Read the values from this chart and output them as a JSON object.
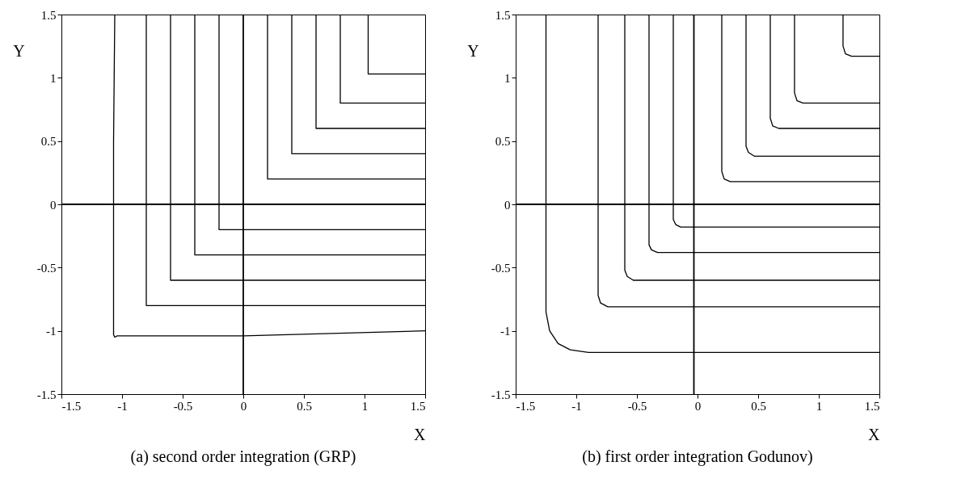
{
  "chart_data": [
    {
      "type": "line",
      "title": "(a) second order integration (GRP)",
      "xlabel": "X",
      "ylabel": "Y",
      "xlim": [
        -1.5,
        1.5
      ],
      "ylim": [
        -1.5,
        1.5
      ],
      "xticks": [
        -1.5,
        -1,
        -0.5,
        0,
        0.5,
        1,
        1.5
      ],
      "yticks": [
        -1.5,
        -1,
        -0.5,
        0,
        0.5,
        1,
        1.5
      ],
      "ref_lines": [
        {
          "axis": "x",
          "value": 0
        },
        {
          "axis": "y",
          "value": 0
        }
      ],
      "series": [
        {
          "color": "#000000",
          "x": [
            -1.06,
            -1.07,
            -1.07,
            -1.06,
            -1.04,
            0,
            1.5
          ],
          "values": [
            1.5,
            0.5,
            -1.03,
            -1.05,
            -1.04,
            -1.04,
            -1.0
          ]
        },
        {
          "color": "#000000",
          "x": [
            -0.8,
            -0.8,
            1.5
          ],
          "values": [
            1.5,
            -0.8,
            -0.8
          ]
        },
        {
          "color": "#000000",
          "x": [
            -0.6,
            -0.6,
            1.5
          ],
          "values": [
            1.5,
            -0.6,
            -0.6
          ]
        },
        {
          "color": "#000000",
          "x": [
            -0.4,
            -0.4,
            1.5
          ],
          "values": [
            1.5,
            -0.4,
            -0.4
          ]
        },
        {
          "color": "#000000",
          "x": [
            -0.2,
            -0.2,
            1.5
          ],
          "values": [
            1.5,
            -0.2,
            -0.2
          ]
        },
        {
          "color": "#000000",
          "x": [
            0.2,
            0.2,
            1.5
          ],
          "values": [
            1.5,
            0.2,
            0.2
          ]
        },
        {
          "color": "#000000",
          "x": [
            0.4,
            0.4,
            1.5
          ],
          "values": [
            1.5,
            0.4,
            0.4
          ]
        },
        {
          "color": "#000000",
          "x": [
            0.6,
            0.6,
            1.5
          ],
          "values": [
            1.5,
            0.6,
            0.6
          ]
        },
        {
          "color": "#000000",
          "x": [
            0.8,
            0.8,
            1.5
          ],
          "values": [
            1.5,
            0.8,
            0.8
          ]
        },
        {
          "color": "#000000",
          "x": [
            1.03,
            1.03,
            1.5
          ],
          "values": [
            1.5,
            1.03,
            1.03
          ]
        }
      ]
    },
    {
      "type": "line",
      "title": "(b) first order integration Godunov)",
      "xlabel": "X",
      "ylabel": "Y",
      "xlim": [
        -1.5,
        1.5
      ],
      "ylim": [
        -1.5,
        1.5
      ],
      "xticks": [
        -1.5,
        -1,
        -0.5,
        0,
        0.5,
        1,
        1.5
      ],
      "yticks": [
        -1.5,
        -1,
        -0.5,
        0,
        0.5,
        1,
        1.5
      ],
      "ref_lines": [
        {
          "axis": "x",
          "value": -0.03
        },
        {
          "axis": "y",
          "value": 0
        }
      ],
      "series": [
        {
          "color": "#000000",
          "x": [
            -1.25,
            -1.25,
            -1.22,
            -1.15,
            -1.05,
            -0.9,
            1.5
          ],
          "values": [
            1.5,
            -0.85,
            -1.0,
            -1.1,
            -1.15,
            -1.17,
            -1.17
          ]
        },
        {
          "color": "#000000",
          "x": [
            -0.82,
            -0.82,
            -0.8,
            -0.74,
            1.5
          ],
          "values": [
            1.5,
            -0.72,
            -0.78,
            -0.81,
            -0.81
          ]
        },
        {
          "color": "#000000",
          "x": [
            -0.6,
            -0.6,
            -0.58,
            -0.53,
            1.5
          ],
          "values": [
            1.5,
            -0.52,
            -0.57,
            -0.6,
            -0.6
          ]
        },
        {
          "color": "#000000",
          "x": [
            -0.4,
            -0.4,
            -0.38,
            -0.33,
            1.5
          ],
          "values": [
            1.5,
            -0.32,
            -0.36,
            -0.38,
            -0.38
          ]
        },
        {
          "color": "#000000",
          "x": [
            -0.2,
            -0.2,
            -0.18,
            -0.14,
            1.5
          ],
          "values": [
            1.5,
            -0.12,
            -0.16,
            -0.18,
            -0.18
          ]
        },
        {
          "color": "#000000",
          "x": [
            0.2,
            0.2,
            0.22,
            0.27,
            1.5
          ],
          "values": [
            1.5,
            0.26,
            0.2,
            0.18,
            0.18
          ]
        },
        {
          "color": "#000000",
          "x": [
            0.4,
            0.4,
            0.42,
            0.47,
            1.5
          ],
          "values": [
            1.5,
            0.46,
            0.41,
            0.38,
            0.38
          ]
        },
        {
          "color": "#000000",
          "x": [
            0.6,
            0.6,
            0.62,
            0.67,
            1.5
          ],
          "values": [
            1.5,
            0.68,
            0.62,
            0.6,
            0.6
          ]
        },
        {
          "color": "#000000",
          "x": [
            0.8,
            0.8,
            0.82,
            0.87,
            1.5
          ],
          "values": [
            1.5,
            0.88,
            0.82,
            0.8,
            0.8
          ]
        },
        {
          "color": "#000000",
          "x": [
            1.2,
            1.2,
            1.22,
            1.27,
            1.5
          ],
          "values": [
            1.5,
            1.25,
            1.19,
            1.17,
            1.17
          ]
        }
      ]
    }
  ]
}
